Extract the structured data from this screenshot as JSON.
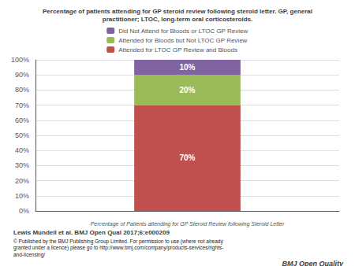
{
  "chart_data": {
    "type": "bar",
    "title": "Percentage of patients attending for GP steroid review following steroid letter. GP, general\npractitioner; LTOC, long-term oral corticosteroids.",
    "xlabel": "Percentage of Patients attending for GP Steroid Review following Steroid Letter",
    "categories": [
      null
    ],
    "series": [
      {
        "name": "Attended for LTOC GP Review and Bloods",
        "color": "#c0504d",
        "values": [
          70
        ],
        "value_labels": [
          "70%"
        ]
      },
      {
        "name": "Attended for Bloods but Not LTOC GP Review",
        "color": "#9bbb59",
        "values": [
          20
        ],
        "value_labels": [
          "20%"
        ]
      },
      {
        "name": "Did Not Attend for Bloods or LTOC GP Review",
        "color": "#8064a2",
        "values": [
          10
        ],
        "value_labels": [
          "10%"
        ]
      }
    ],
    "ylim": [
      0,
      100
    ],
    "yticks": [
      {
        "value": 0,
        "label": "0%"
      },
      {
        "value": 10,
        "label": "10%"
      },
      {
        "value": 20,
        "label": "20%"
      },
      {
        "value": 30,
        "label": "30%"
      },
      {
        "value": 40,
        "label": "40%"
      },
      {
        "value": 50,
        "label": "50%"
      },
      {
        "value": 60,
        "label": "60%"
      },
      {
        "value": 70,
        "label": "70%"
      },
      {
        "value": 80,
        "label": "80%"
      },
      {
        "value": 90,
        "label": "90%"
      },
      {
        "value": 100,
        "label": "100%"
      }
    ],
    "grid": true,
    "stacked": true,
    "data_labels": true,
    "legend": "top",
    "annotations": [
      "Lewis Mundell et al. BMJ Open Qual 2017;6:e000209",
      "© Published by the BMJ Publishing Group Limited. For permission to use (where not already\ngranted under a licence) please go to http://www.bmj.com/company/products-services/rights-\nand-licensing/",
      "BMJ Open Quality"
    ]
  }
}
